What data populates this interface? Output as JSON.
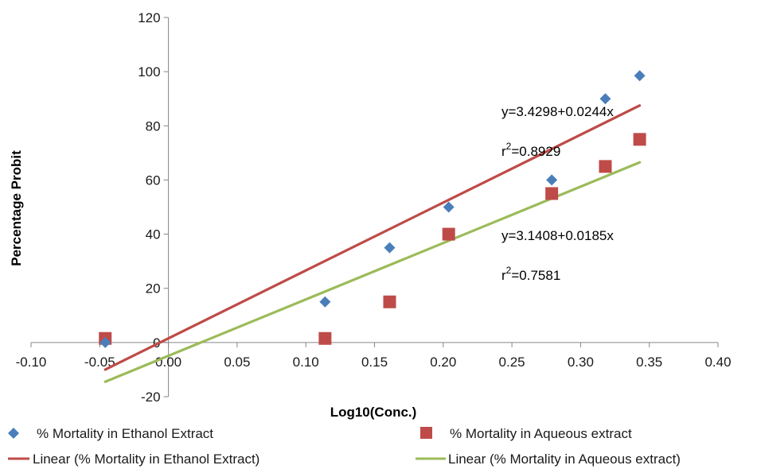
{
  "chart_data": {
    "type": "scatter",
    "title": "",
    "xlabel": "Log10(Conc.)",
    "ylabel": "Percentage Probit",
    "xlim": [
      -0.1,
      0.4
    ],
    "ylim": [
      -20,
      120
    ],
    "x_ticks": [
      "-0.10",
      "-0.05",
      "0.00",
      "0.05",
      "0.10",
      "0.15",
      "0.20",
      "0.25",
      "0.30",
      "0.35",
      "0.40"
    ],
    "x_tick_values": [
      -0.1,
      -0.05,
      0.0,
      0.05,
      0.1,
      0.15,
      0.2,
      0.25,
      0.3,
      0.35,
      0.4
    ],
    "y_ticks": [
      "-20",
      "0",
      "20",
      "40",
      "60",
      "80",
      "100",
      "120"
    ],
    "y_tick_values": [
      -20,
      0,
      20,
      40,
      60,
      80,
      100,
      120
    ],
    "grid": false,
    "legend_position": "bottom",
    "series": [
      {
        "name": "% Mortality in Ethanol Extract",
        "marker": "diamond",
        "color": "#4a7ebb",
        "points": [
          [
            -0.046,
            0
          ],
          [
            0.114,
            15
          ],
          [
            0.161,
            35
          ],
          [
            0.204,
            50
          ],
          [
            0.279,
            60
          ],
          [
            0.318,
            90
          ],
          [
            0.343,
            98.5
          ]
        ]
      },
      {
        "name": "% Mortality in Aqueous extract",
        "marker": "square",
        "color": "#be4b48",
        "points": [
          [
            -0.046,
            1.5
          ],
          [
            0.114,
            1.5
          ],
          [
            0.161,
            15
          ],
          [
            0.204,
            40
          ],
          [
            0.279,
            55
          ],
          [
            0.318,
            65
          ],
          [
            0.343,
            75
          ]
        ]
      }
    ],
    "trendlines": [
      {
        "name": "Linear (% Mortality in Ethanol Extract)",
        "color": "#be4b48",
        "from": [
          -0.046,
          -10
        ],
        "to": [
          0.343,
          87.5
        ]
      },
      {
        "name": "Linear (% Mortality in Aqueous extract)",
        "color": "#9bbb59",
        "from": [
          -0.046,
          -14.5
        ],
        "to": [
          0.343,
          66.5
        ]
      }
    ],
    "annotations": [
      {
        "id": "eq1",
        "text": "y=3.4298+0.0244x"
      },
      {
        "id": "r1_pre",
        "text": "r"
      },
      {
        "id": "r1_sup",
        "text": "2"
      },
      {
        "id": "r1_post",
        "text": "=0.8929"
      },
      {
        "id": "eq2",
        "text": "y=3.1408+0.0185x"
      },
      {
        "id": "r2_pre",
        "text": "r"
      },
      {
        "id": "r2_sup",
        "text": "2"
      },
      {
        "id": "r2_post",
        "text": "=0.7581"
      }
    ]
  },
  "colors": {
    "axis": "#868686",
    "ethanol_marker": "#4a7ebb",
    "aqueous_marker": "#be4b48",
    "ethanol_line": "#be4b48",
    "aqueous_line": "#9bbb59"
  }
}
